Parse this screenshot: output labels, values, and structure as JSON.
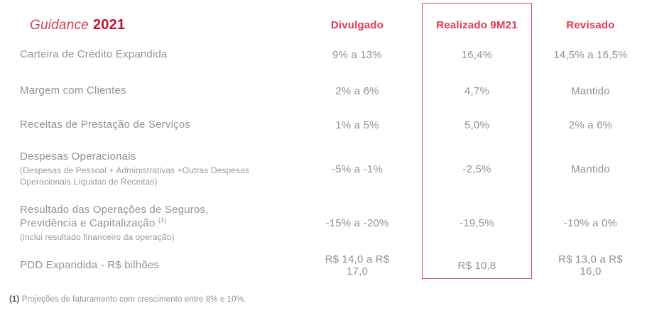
{
  "title": {
    "word": "Guidance",
    "year": "2021"
  },
  "columns": [
    {
      "label": "Divulgado",
      "highlighted": false
    },
    {
      "label": "Realizado 9M21",
      "highlighted": true
    },
    {
      "label": "Revisado",
      "highlighted": false
    }
  ],
  "rows": [
    {
      "label": "Carteira de Crédito Expandida",
      "divulgado": "9% a 13%",
      "realizado": "16,4%",
      "revisado": "14,5% a 16,5%"
    },
    {
      "label": "Margem com Clientes",
      "divulgado": "2% a 6%",
      "realizado": "4,7%",
      "revisado": "Mantido"
    },
    {
      "label": "Receitas de Prestação de Serviços",
      "divulgado": "1% a 5%",
      "realizado": "5,0%",
      "revisado": "2% a 6%"
    },
    {
      "label": "Despesas Operacionais",
      "sublabel": "(Despesas de Pessoal + Administrativas +Outras Despesas Operacionais Líquidas de Receitas)",
      "divulgado": "-5% a -1%",
      "realizado": "-2,5%",
      "revisado": "Mantido"
    },
    {
      "label": "Resultado das Operações de Seguros, Previdência e Capitalização",
      "label_sup": "(1)",
      "sublabel": "(inclui resultado financeiro da operação)",
      "divulgado": "-15% a -20%",
      "realizado": "-19,5%",
      "revisado": "-10% a 0%"
    },
    {
      "label": "PDD Expandida - R$ bilhões",
      "divulgado": "R$ 14,0 a R$ 17,0",
      "realizado": "R$ 10,8",
      "revisado": "R$ 13,0 a R$ 16,0"
    }
  ],
  "footnote": {
    "marker": "(1)",
    "text": "Projeções de faturamento com crescimento entre 8% e 10%."
  },
  "colors": {
    "accent_red": "#e13a52",
    "deep_red": "#c50f31",
    "box_border": "#d25058",
    "text_gray": "#8f9399",
    "footnote_marker": "#55585c"
  }
}
